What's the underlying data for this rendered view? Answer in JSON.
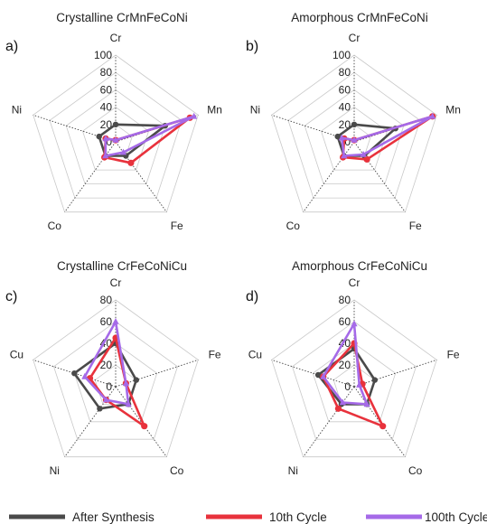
{
  "chart_data": [
    {
      "type": "radar",
      "panel_label": "a)",
      "title": "Crystalline CrMnFeCoNi",
      "axes": [
        "Cr",
        "Mn",
        "Fe",
        "Co",
        "Ni"
      ],
      "rlim": [
        0,
        100
      ],
      "ticks": [
        "0",
        "20",
        "40",
        "60",
        "80",
        "100"
      ],
      "series": [
        {
          "name": "After Synthesis",
          "values": [
            20,
            60,
            20,
            20,
            20
          ]
        },
        {
          "name": "10th Cycle",
          "values": [
            2,
            90,
            30,
            22,
            12
          ]
        },
        {
          "name": "100th Cycle",
          "values": [
            2,
            95,
            15,
            20,
            12
          ]
        }
      ]
    },
    {
      "type": "radar",
      "panel_label": "b)",
      "title": "Amorphous CrMnFeCoNi",
      "axes": [
        "Cr",
        "Mn",
        "Fe",
        "Co",
        "Ni"
      ],
      "rlim": [
        0,
        100
      ],
      "ticks": [
        "0",
        "20",
        "40",
        "60",
        "80",
        "100"
      ],
      "series": [
        {
          "name": "After Synthesis",
          "values": [
            20,
            50,
            20,
            20,
            20
          ]
        },
        {
          "name": "10th Cycle",
          "values": [
            2,
            95,
            25,
            22,
            12
          ]
        },
        {
          "name": "100th Cycle",
          "values": [
            2,
            95,
            18,
            20,
            15
          ]
        }
      ]
    },
    {
      "type": "radar",
      "panel_label": "c)",
      "title": "Crystalline CrFeCoNiCu",
      "axes": [
        "Cr",
        "Fe",
        "Co",
        "Ni",
        "Cu"
      ],
      "rlim": [
        0,
        80
      ],
      "ticks": [
        "0",
        "20",
        "40",
        "60",
        "80"
      ],
      "series": [
        {
          "name": "After Synthesis",
          "values": [
            40,
            20,
            20,
            25,
            40
          ]
        },
        {
          "name": "10th Cycle",
          "values": [
            45,
            10,
            45,
            15,
            25
          ]
        },
        {
          "name": "100th Cycle",
          "values": [
            60,
            10,
            20,
            15,
            30
          ]
        }
      ]
    },
    {
      "type": "radar",
      "panel_label": "d)",
      "title": "Amorphous CrFeCoNiCu",
      "axes": [
        "Cr",
        "Fe",
        "Co",
        "Ni",
        "Cu"
      ],
      "rlim": [
        0,
        80
      ],
      "ticks": [
        "0",
        "20",
        "40",
        "60",
        "80"
      ],
      "series": [
        {
          "name": "After Synthesis",
          "values": [
            35,
            20,
            20,
            20,
            35
          ]
        },
        {
          "name": "10th Cycle",
          "values": [
            40,
            8,
            45,
            25,
            30
          ]
        },
        {
          "name": "100th Cycle",
          "values": [
            58,
            5,
            20,
            18,
            30
          ]
        }
      ]
    }
  ],
  "legend": {
    "position": "bottom",
    "entries": [
      {
        "label": "After Synthesis",
        "color": "#4a4a4a"
      },
      {
        "label": "10th Cycle",
        "color": "#e8323c"
      },
      {
        "label": "100th Cycle",
        "color": "#a56ae8"
      }
    ]
  }
}
